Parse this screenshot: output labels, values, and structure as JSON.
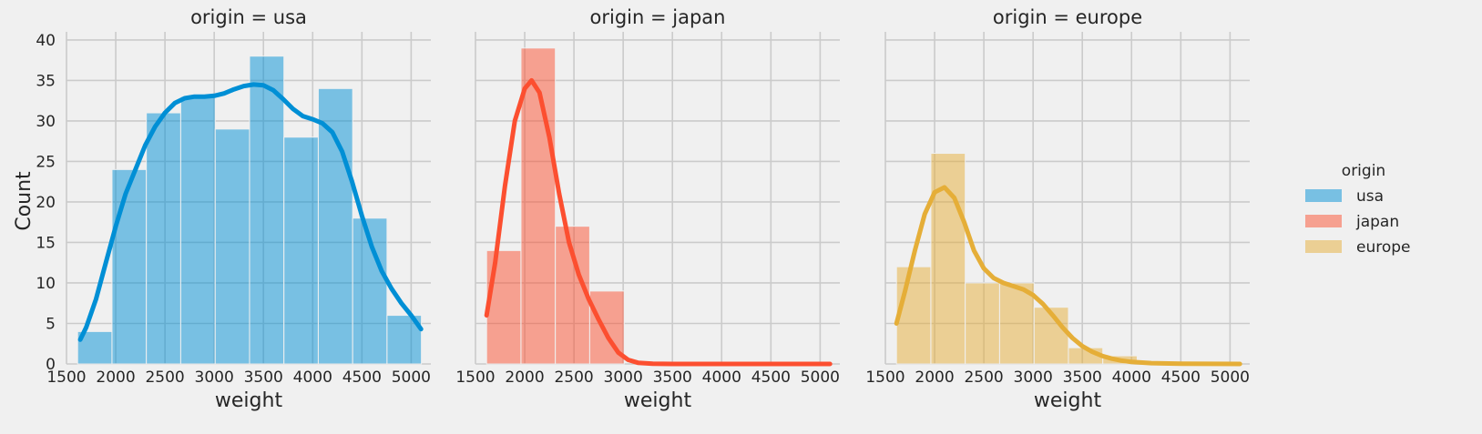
{
  "chart_data": {
    "type": "histogram",
    "ylabel": "Count",
    "xlabel": "weight",
    "xlim": [
      1500,
      5200
    ],
    "ylim": [
      0,
      41
    ],
    "xticks": [
      1500,
      2000,
      2500,
      3000,
      3500,
      4000,
      4500,
      5000
    ],
    "yticks": [
      0,
      5,
      10,
      15,
      20,
      25,
      30,
      35,
      40
    ],
    "grid": true,
    "legend": {
      "title": "origin",
      "placement": "right",
      "entries": [
        "usa",
        "japan",
        "europe"
      ]
    },
    "panels": [
      {
        "title": "origin = usa",
        "series": "usa",
        "color": "#008fd5",
        "bins": [
          {
            "start": 1613,
            "end": 1962,
            "count": 4
          },
          {
            "start": 1962,
            "end": 2311,
            "count": 24
          },
          {
            "start": 2311,
            "end": 2660,
            "count": 31
          },
          {
            "start": 2660,
            "end": 3010,
            "count": 33
          },
          {
            "start": 3010,
            "end": 3359,
            "count": 29
          },
          {
            "start": 3359,
            "end": 3708,
            "count": 38
          },
          {
            "start": 3708,
            "end": 4057,
            "count": 28
          },
          {
            "start": 4057,
            "end": 4406,
            "count": 34
          },
          {
            "start": 4406,
            "end": 4755,
            "count": 18
          },
          {
            "start": 4755,
            "end": 5104,
            "count": 6
          }
        ],
        "kde": [
          [
            1640,
            3
          ],
          [
            1700,
            4.5
          ],
          [
            1800,
            8
          ],
          [
            1900,
            12.5
          ],
          [
            2000,
            17
          ],
          [
            2100,
            21
          ],
          [
            2200,
            24
          ],
          [
            2300,
            27
          ],
          [
            2400,
            29.3
          ],
          [
            2500,
            31
          ],
          [
            2600,
            32.2
          ],
          [
            2700,
            32.8
          ],
          [
            2800,
            33
          ],
          [
            2900,
            33
          ],
          [
            3000,
            33.1
          ],
          [
            3100,
            33.4
          ],
          [
            3200,
            33.9
          ],
          [
            3300,
            34.3
          ],
          [
            3400,
            34.5
          ],
          [
            3500,
            34.4
          ],
          [
            3600,
            33.8
          ],
          [
            3700,
            32.7
          ],
          [
            3800,
            31.5
          ],
          [
            3900,
            30.6
          ],
          [
            4000,
            30.2
          ],
          [
            4100,
            29.7
          ],
          [
            4200,
            28.6
          ],
          [
            4300,
            26.2
          ],
          [
            4400,
            22.5
          ],
          [
            4500,
            18.3
          ],
          [
            4600,
            14.5
          ],
          [
            4700,
            11.5
          ],
          [
            4800,
            9.3
          ],
          [
            4900,
            7.5
          ],
          [
            5000,
            6
          ],
          [
            5100,
            4.3
          ]
        ]
      },
      {
        "title": "origin = japan",
        "series": "japan",
        "color": "#fc4f30",
        "bins": [
          {
            "start": 1613,
            "end": 1962,
            "count": 14
          },
          {
            "start": 1962,
            "end": 2311,
            "count": 39
          },
          {
            "start": 2311,
            "end": 2660,
            "count": 17
          },
          {
            "start": 2660,
            "end": 3010,
            "count": 9
          }
        ],
        "kde": [
          [
            1613,
            6
          ],
          [
            1700,
            12.5
          ],
          [
            1800,
            22
          ],
          [
            1900,
            30
          ],
          [
            2000,
            34
          ],
          [
            2070,
            35
          ],
          [
            2150,
            33.5
          ],
          [
            2250,
            28
          ],
          [
            2350,
            21
          ],
          [
            2450,
            15
          ],
          [
            2550,
            11
          ],
          [
            2650,
            8
          ],
          [
            2750,
            5.5
          ],
          [
            2850,
            3.2
          ],
          [
            2950,
            1.4
          ],
          [
            3050,
            0.5
          ],
          [
            3150,
            0.15
          ],
          [
            3300,
            0.02
          ],
          [
            3500,
            0
          ],
          [
            4000,
            0
          ],
          [
            5100,
            0
          ]
        ]
      },
      {
        "title": "origin = europe",
        "series": "europe",
        "color": "#e5ae38",
        "bins": [
          {
            "start": 1613,
            "end": 1962,
            "count": 12
          },
          {
            "start": 1962,
            "end": 2311,
            "count": 26
          },
          {
            "start": 2311,
            "end": 2660,
            "count": 10
          },
          {
            "start": 2660,
            "end": 3010,
            "count": 10
          },
          {
            "start": 3010,
            "end": 3359,
            "count": 7
          },
          {
            "start": 3359,
            "end": 3708,
            "count": 2
          },
          {
            "start": 3708,
            "end": 4057,
            "count": 1
          }
        ],
        "kde": [
          [
            1613,
            5
          ],
          [
            1700,
            9
          ],
          [
            1800,
            14
          ],
          [
            1900,
            18.5
          ],
          [
            2000,
            21.2
          ],
          [
            2100,
            21.8
          ],
          [
            2200,
            20.5
          ],
          [
            2300,
            17.5
          ],
          [
            2400,
            14
          ],
          [
            2500,
            11.8
          ],
          [
            2600,
            10.6
          ],
          [
            2700,
            10
          ],
          [
            2800,
            9.6
          ],
          [
            2900,
            9.2
          ],
          [
            3000,
            8.5
          ],
          [
            3100,
            7.4
          ],
          [
            3200,
            6
          ],
          [
            3300,
            4.5
          ],
          [
            3400,
            3.2
          ],
          [
            3500,
            2.2
          ],
          [
            3600,
            1.5
          ],
          [
            3700,
            1
          ],
          [
            3800,
            0.65
          ],
          [
            3900,
            0.4
          ],
          [
            4000,
            0.25
          ],
          [
            4200,
            0.1
          ],
          [
            4500,
            0.02
          ],
          [
            5100,
            0
          ]
        ]
      }
    ]
  }
}
